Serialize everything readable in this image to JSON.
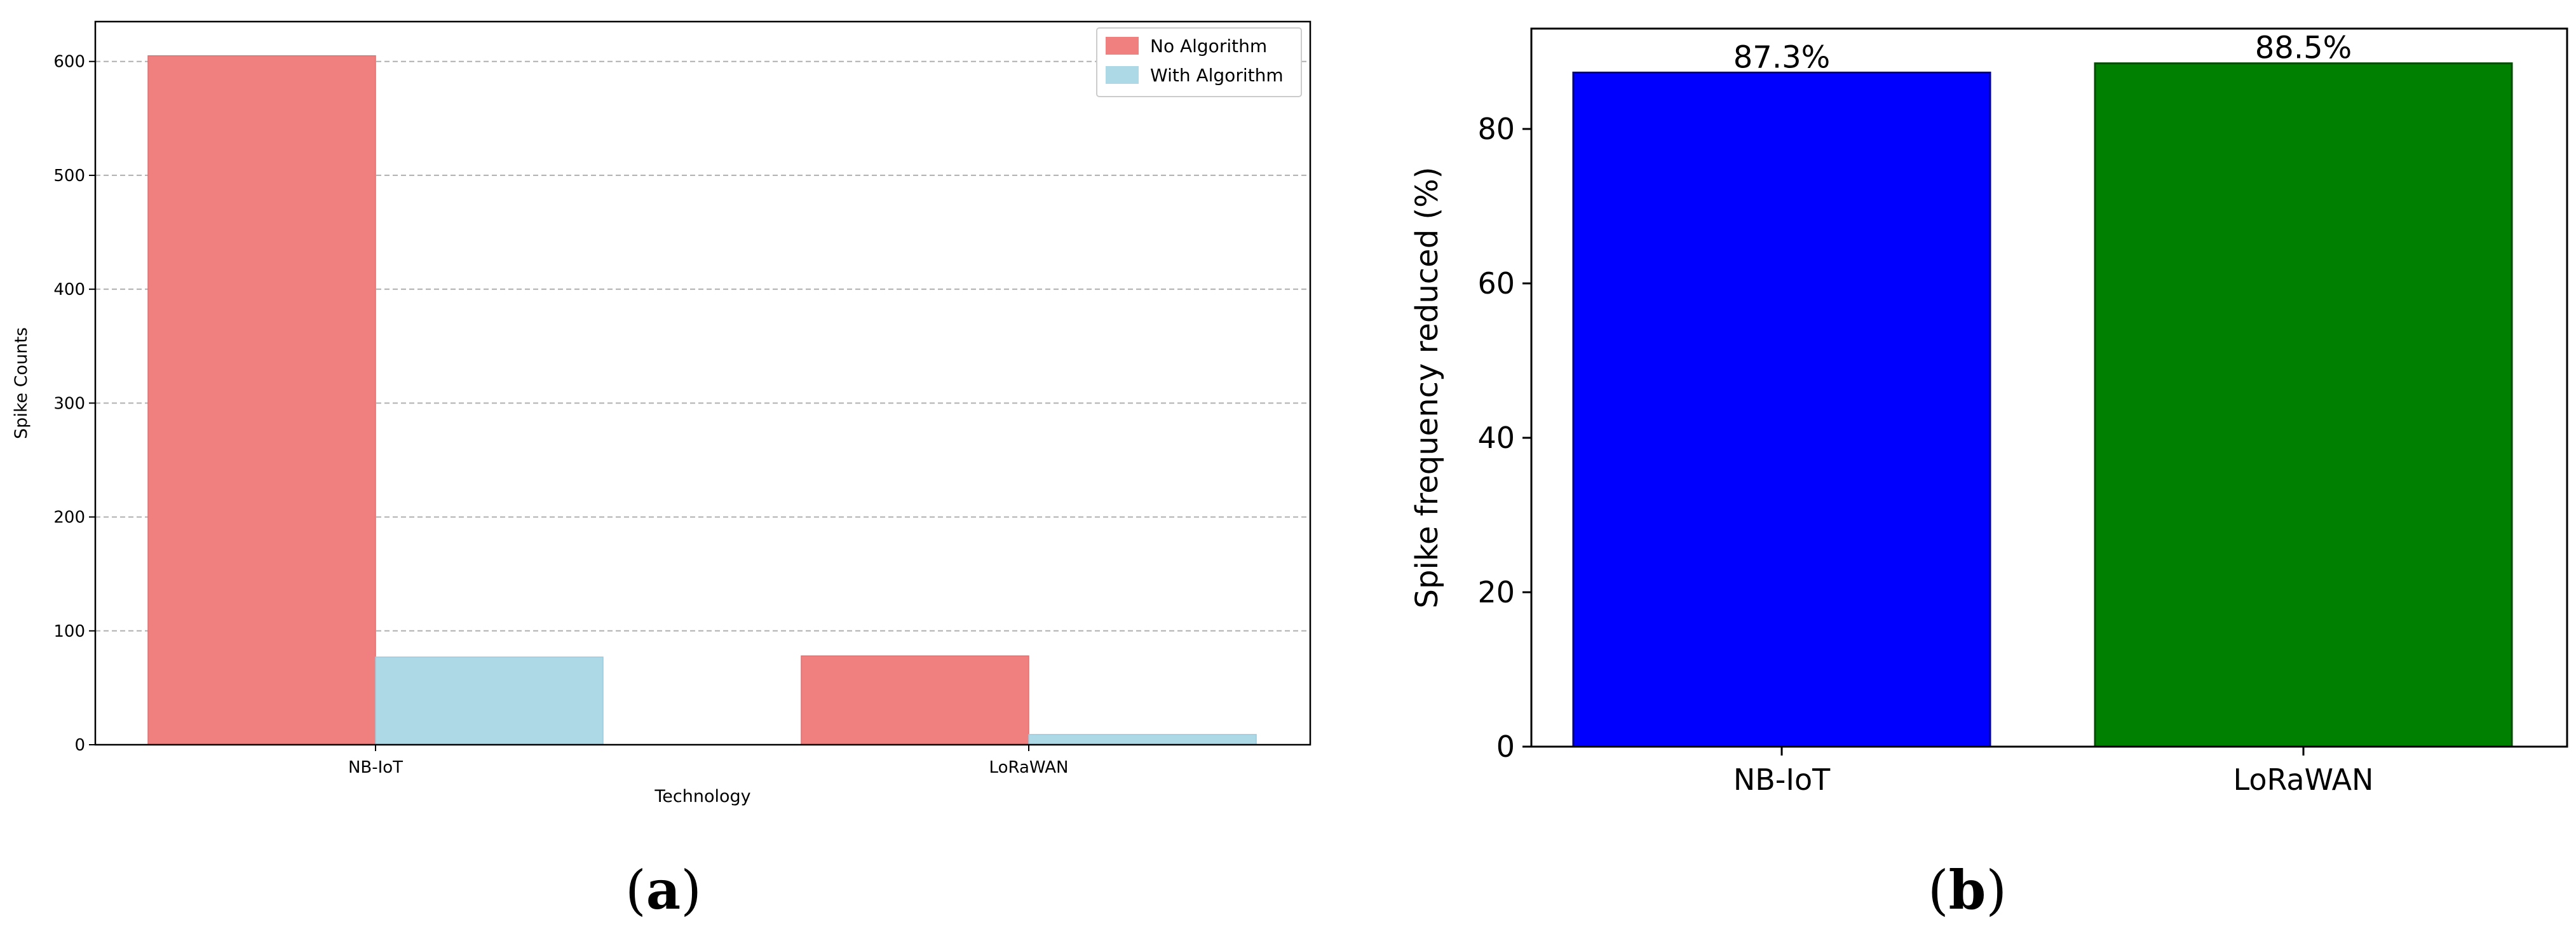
{
  "chart_data": [
    {
      "type": "bar",
      "categories": [
        "NB-IoT",
        "LoRaWAN"
      ],
      "series": [
        {
          "name": "No Algorithm",
          "values": [
            605,
            78
          ],
          "color": "#f08080"
        },
        {
          "name": "With Algorithm",
          "values": [
            77,
            9
          ],
          "color": "#add8e6"
        }
      ],
      "xlabel": "Technology",
      "ylabel": "Spike Counts",
      "ylim": [
        0,
        635
      ],
      "yticks": [
        0,
        100,
        200,
        300,
        400,
        500,
        600
      ],
      "grid": "horizontal dashed",
      "legend_position": "top-right",
      "legend": [
        "No Algorithm",
        "With Algorithm"
      ],
      "panel_label": {
        "open": "(",
        "letter": "a",
        "close": ")"
      }
    },
    {
      "type": "bar",
      "categories": [
        "NB-IoT",
        "LoRaWAN"
      ],
      "values": [
        87.3,
        88.5
      ],
      "colors": [
        "#0000ff",
        "#008000"
      ],
      "data_labels": [
        "87.3%",
        "88.5%"
      ],
      "xlabel": "",
      "ylabel": "Spike frequency reduced (%)",
      "ylim": [
        0,
        93
      ],
      "yticks": [
        0,
        20,
        40,
        60,
        80
      ],
      "grid": "none",
      "panel_label": {
        "open": "(",
        "letter": "b",
        "close": ")"
      }
    }
  ]
}
